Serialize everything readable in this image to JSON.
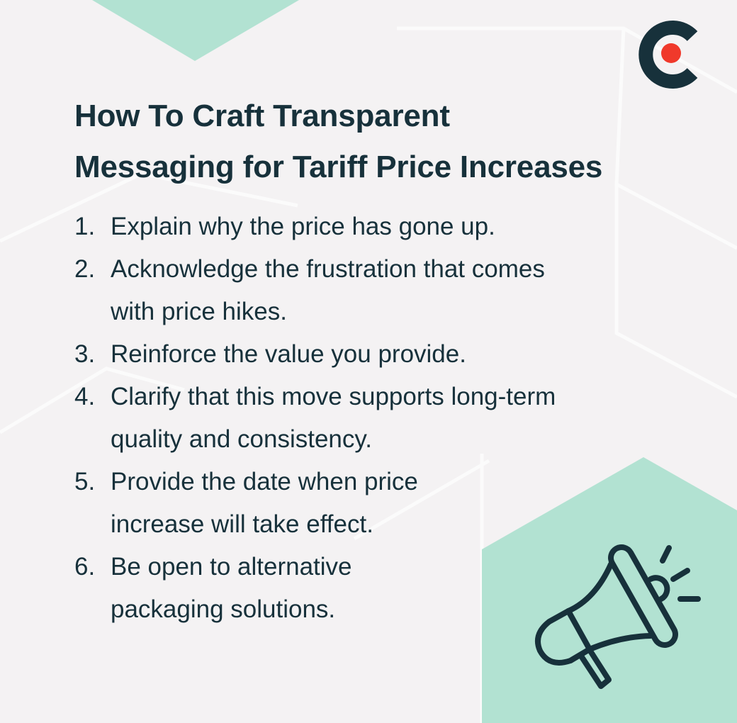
{
  "title": {
    "line1": "How To Craft Transparent",
    "line2": "Messaging for Tariff Price Increases"
  },
  "items": [
    {
      "num": "1.",
      "lines": [
        "Explain why the price has gone up."
      ]
    },
    {
      "num": "2.",
      "lines": [
        "Acknowledge the frustration that comes",
        "with price hikes."
      ]
    },
    {
      "num": "3.",
      "lines": [
        "Reinforce the value you provide."
      ]
    },
    {
      "num": "4.",
      "lines": [
        "Clarify that this move supports long-term",
        "quality and consistency."
      ]
    },
    {
      "num": "5.",
      "lines": [
        "Provide the date when price",
        "increase will take effect."
      ]
    },
    {
      "num": "6.",
      "lines": [
        "Be open to alternative",
        "packaging solutions."
      ]
    }
  ],
  "icons": {
    "logo": "c-dot-logo",
    "illustration": "megaphone-icon"
  },
  "colors": {
    "background": "#f4f2f3",
    "accent_green": "#b2e2d2",
    "dark": "#17313b",
    "logo_red": "#f0392b"
  }
}
